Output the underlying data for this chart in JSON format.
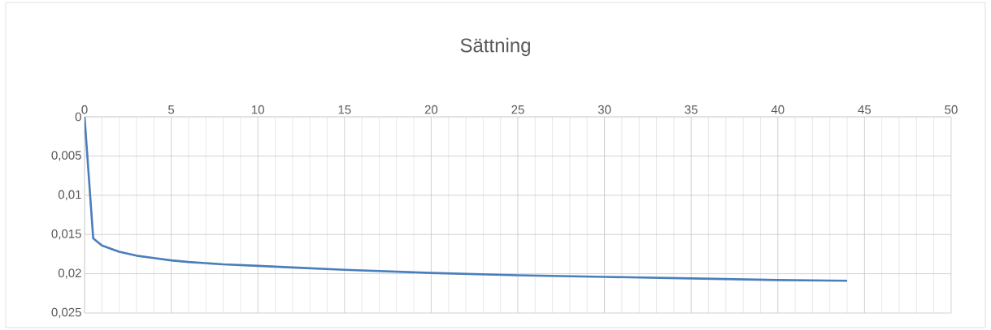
{
  "chart_data": {
    "type": "line",
    "title": "Sättning",
    "x": [
      0,
      0.5,
      1,
      2,
      3,
      4,
      5,
      6,
      8,
      10,
      12,
      15,
      20,
      25,
      30,
      35,
      40,
      44
    ],
    "series": [
      {
        "color": "#4a7ebb",
        "values": [
          0,
          0.0155,
          0.0164,
          0.0172,
          0.0177,
          0.018,
          0.0183,
          0.0185,
          0.0188,
          0.019,
          0.0192,
          0.0195,
          0.0199,
          0.0202,
          0.0204,
          0.0206,
          0.0208,
          0.0209
        ]
      }
    ],
    "xlim": [
      0,
      50
    ],
    "xticks": [
      0,
      5,
      10,
      15,
      20,
      25,
      30,
      35,
      40,
      45,
      50
    ],
    "ylim": [
      0.025,
      0
    ],
    "yticks": [
      {
        "value": 0,
        "label": "0"
      },
      {
        "value": 0.005,
        "label": "0,005"
      },
      {
        "value": 0.01,
        "label": "0,01"
      },
      {
        "value": 0.015,
        "label": "0,015"
      },
      {
        "value": 0.02,
        "label": "0,02"
      },
      {
        "value": 0.025,
        "label": "0,025"
      }
    ],
    "grid": true,
    "marker": "none",
    "line_style": "solid"
  }
}
